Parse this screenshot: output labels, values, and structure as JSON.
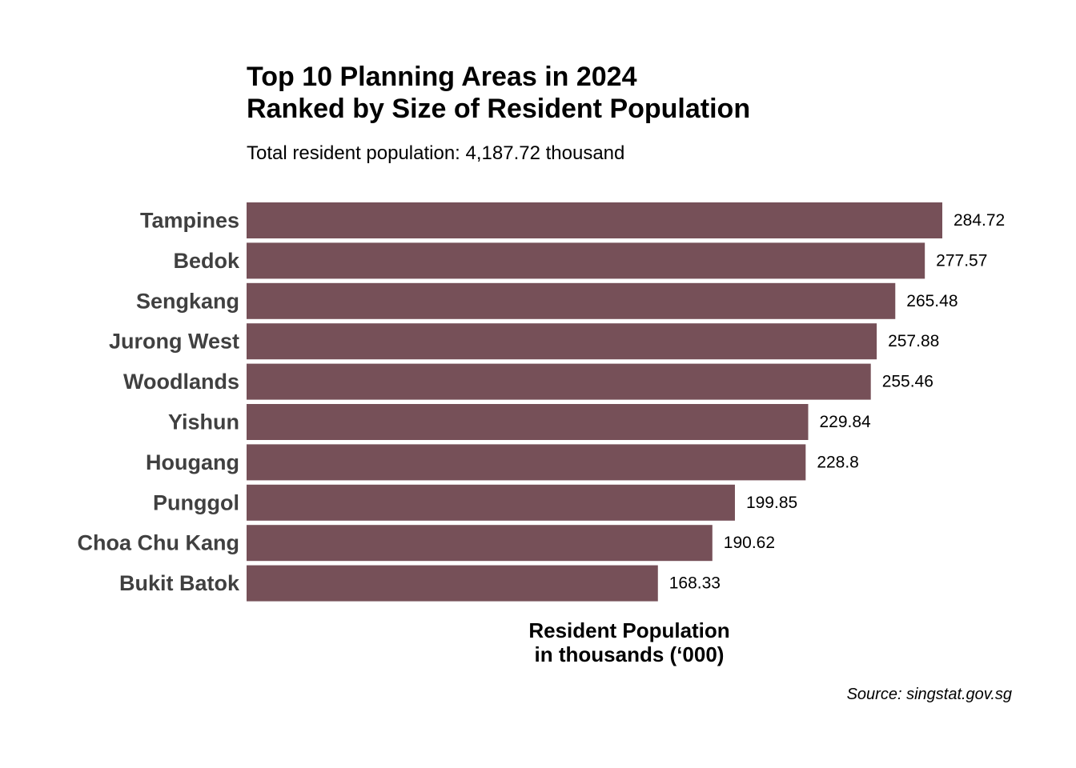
{
  "chart_data": {
    "type": "bar",
    "orientation": "horizontal",
    "title": [
      "Top 10 Planning Areas in 2024",
      "Ranked by Size of Resident Population"
    ],
    "subtitle": "Total resident population: 4,187.72 thousand",
    "xlabel": [
      "Resident Population",
      "in thousands (‘000)"
    ],
    "caption": "Source: singstat.gov.sg",
    "categories": [
      "Tampines",
      "Bedok",
      "Sengkang",
      "Jurong West",
      "Woodlands",
      "Yishun",
      "Hougang",
      "Punggol",
      "Choa Chu Kang",
      "Bukit Batok"
    ],
    "values": [
      284.72,
      277.57,
      265.48,
      257.88,
      255.46,
      229.84,
      228.8,
      199.85,
      190.62,
      168.33
    ],
    "value_labels": [
      "284.72",
      "277.57",
      "265.48",
      "257.88",
      "255.46",
      "229.84",
      "228.8",
      "199.85",
      "190.62",
      "168.33"
    ],
    "xlim": [
      0,
      284.72
    ],
    "grid": false,
    "legend": "none",
    "bar_color": "#765058"
  }
}
